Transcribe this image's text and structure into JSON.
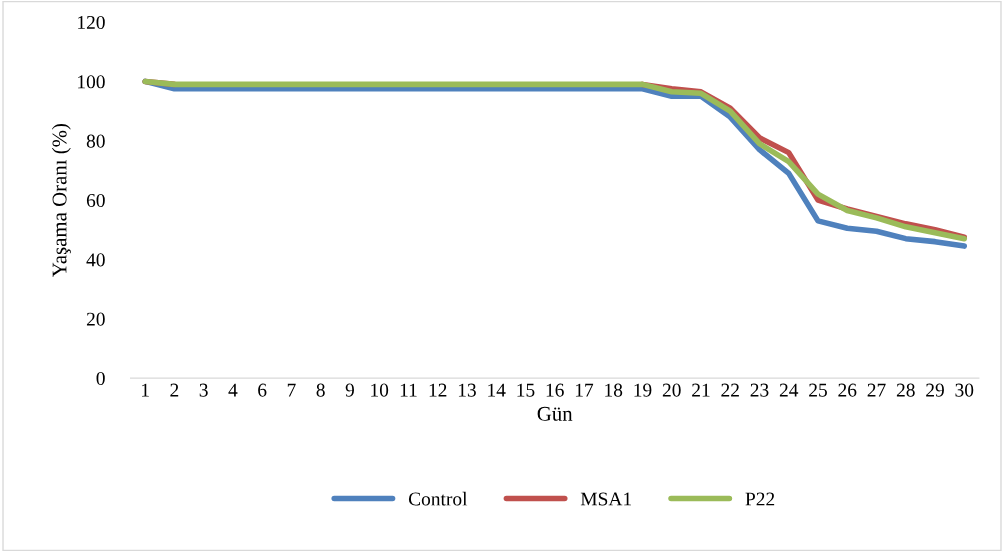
{
  "chart_data": {
    "type": "line",
    "xlabel": "Gün",
    "ylabel": "Yaşama Oranı (%)",
    "categories": [
      "1",
      "2",
      "3",
      "4",
      "6",
      "7",
      "8",
      "9",
      "10",
      "11",
      "12",
      "13",
      "14",
      "15",
      "16",
      "17",
      "18",
      "19",
      "20",
      "21",
      "22",
      "23",
      "24",
      "25",
      "26",
      "27",
      "28",
      "29",
      "30"
    ],
    "series": [
      {
        "name": "Control",
        "color": "#4f81bd",
        "values": [
          100,
          97.5,
          97.5,
          97.5,
          97.5,
          97.5,
          97.5,
          97.5,
          97.5,
          97.5,
          97.5,
          97.5,
          97.5,
          97.5,
          97.5,
          97.5,
          97.5,
          97.5,
          95,
          95,
          88,
          77,
          69,
          53,
          50.5,
          49.5,
          47,
          46,
          44.5
        ]
      },
      {
        "name": "MSA1",
        "color": "#c0504d",
        "values": [
          100,
          99,
          null,
          null,
          null,
          null,
          null,
          null,
          null,
          null,
          null,
          null,
          null,
          null,
          null,
          null,
          null,
          99,
          97.5,
          96.5,
          91,
          81,
          76,
          60,
          57,
          54.5,
          52,
          50,
          47.5
        ]
      },
      {
        "name": "P22",
        "color": "#9bbb59",
        "values": [
          100,
          99,
          99,
          99,
          99,
          99,
          99,
          99,
          99,
          99,
          99,
          99,
          99,
          99,
          99,
          99,
          99,
          99,
          96.5,
          96,
          90,
          79,
          73,
          62,
          56.5,
          54,
          51,
          49,
          47
        ]
      }
    ],
    "ylim": [
      0,
      120
    ],
    "yticks": [
      0,
      20,
      40,
      60,
      80,
      100,
      120
    ],
    "grid": false,
    "legend": "bottom",
    "marker": "none",
    "line_style": "solid"
  }
}
